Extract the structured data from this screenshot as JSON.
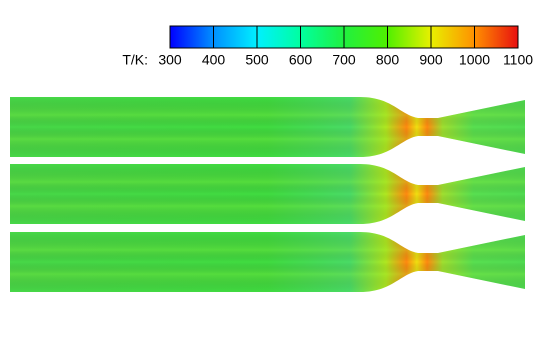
{
  "chart_data": {
    "type": "contour",
    "colorbar": {
      "title": "T/K:",
      "lim": [
        300,
        1100
      ],
      "ticks": [
        300,
        400,
        500,
        600,
        700,
        800,
        900,
        1000,
        1100
      ],
      "colors": [
        "#0000ff",
        "#0090ff",
        "#00f0ff",
        "#00ffa0",
        "#20f040",
        "#50f000",
        "#e8f000",
        "#ff9000",
        "#e81010"
      ]
    }
  }
}
